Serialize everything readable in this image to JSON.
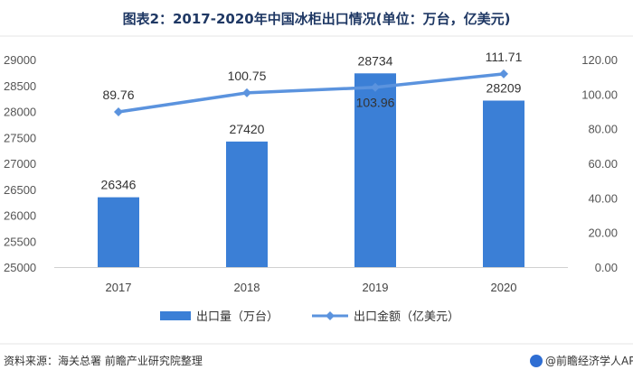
{
  "chart_data": {
    "type": "bar",
    "title": "图表2：2017-2020年中国冰柜出口情况(单位：万台，亿美元)",
    "categories": [
      "2017",
      "2018",
      "2019",
      "2020"
    ],
    "series": [
      {
        "name": "出口量（万台）",
        "type": "bar",
        "axis": "left",
        "values": [
          26346,
          27420,
          28734,
          28209
        ],
        "color": "#3b7fd6"
      },
      {
        "name": "出口金额（亿美元）",
        "type": "line",
        "axis": "right",
        "values": [
          89.76,
          100.75,
          103.96,
          111.71
        ],
        "color": "#5b93de"
      }
    ],
    "y_left": {
      "lim": [
        25000,
        29000
      ],
      "ticks": [
        "25000",
        "25500",
        "26000",
        "26500",
        "27000",
        "27500",
        "28000",
        "28500",
        "29000"
      ]
    },
    "y_right": {
      "lim": [
        0,
        120
      ],
      "ticks": [
        "0.00",
        "20.00",
        "40.00",
        "60.00",
        "80.00",
        "100.00",
        "120.00"
      ]
    },
    "bar_labels": [
      "26346",
      "27420",
      "28734",
      "28209"
    ],
    "line_labels": [
      "89.76",
      "100.75",
      "103.96",
      "111.71"
    ],
    "legend_position": "bottom",
    "grid": false
  },
  "footer": {
    "source": "资料来源：海关总署 前瞻产业研究院整理",
    "brand": "@前瞻经济学人APP"
  }
}
